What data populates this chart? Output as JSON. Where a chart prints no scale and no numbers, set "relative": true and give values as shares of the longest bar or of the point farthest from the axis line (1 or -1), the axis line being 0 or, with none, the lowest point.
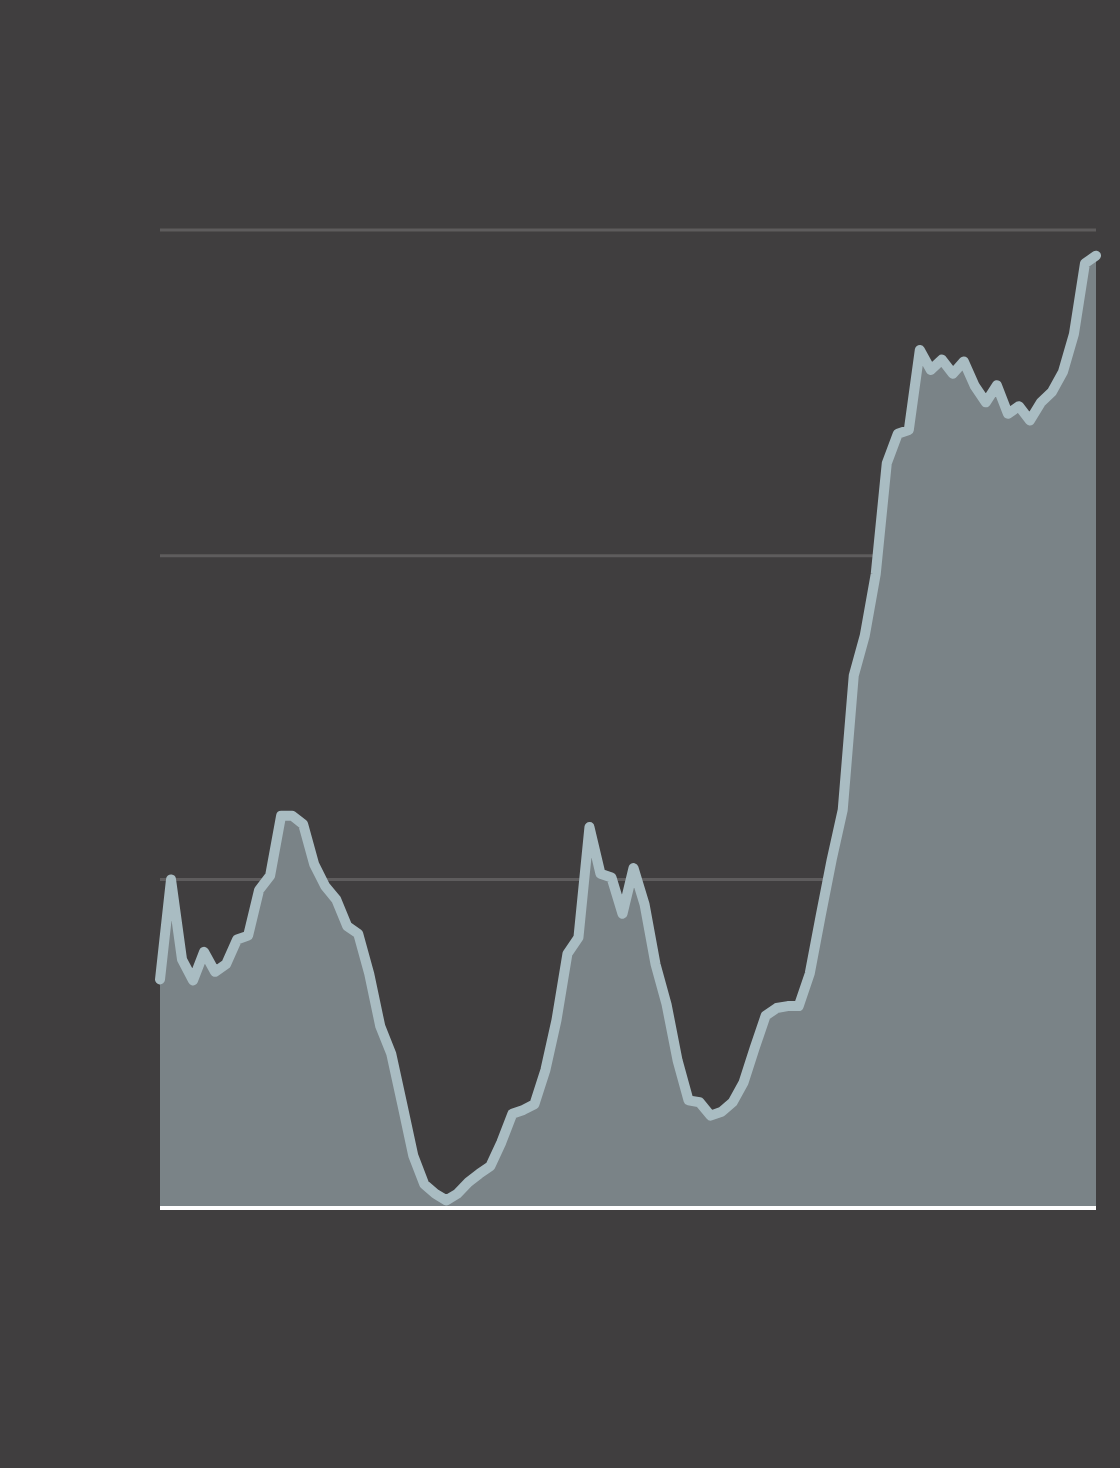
{
  "chart_data": {
    "type": "area",
    "relative": true,
    "ref_lines": [
      {
        "axis": "y",
        "value": 0.345,
        "color": "#5e5c5d"
      },
      {
        "axis": "y",
        "value": 0.685,
        "color": "#5e5c5d"
      },
      {
        "axis": "y",
        "value": 1.027,
        "color": "#5e5c5d"
      }
    ],
    "categories": [
      null,
      null,
      null,
      null,
      null,
      null,
      null,
      null,
      null,
      null,
      null,
      null,
      null,
      null,
      null,
      null,
      null,
      null,
      null,
      null,
      null,
      null,
      null,
      null,
      null,
      null,
      null,
      null,
      null,
      null,
      null,
      null,
      null,
      null,
      null,
      null,
      null,
      null,
      null,
      null,
      null,
      null,
      null,
      null,
      null,
      null,
      null,
      null,
      null,
      null,
      null,
      null,
      null,
      null,
      null,
      null,
      null,
      null,
      null,
      null,
      null,
      null,
      null,
      null,
      null,
      null,
      null,
      null,
      null,
      null,
      null,
      null,
      null,
      null,
      null,
      null,
      null,
      null,
      null,
      null,
      null,
      null,
      null,
      null,
      null,
      null
    ],
    "series": [
      {
        "color": "#a9bcc2",
        "values": [
          0.24,
          0.345,
          0.261,
          0.239,
          0.269,
          0.248,
          0.256,
          0.282,
          0.286,
          0.334,
          0.349,
          0.412,
          0.412,
          0.403,
          0.361,
          0.338,
          0.324,
          0.296,
          0.288,
          0.246,
          0.191,
          0.162,
          0.109,
          0.055,
          0.025,
          0.015,
          0.008,
          0.015,
          0.027,
          0.036,
          0.044,
          0.069,
          0.099,
          0.103,
          0.109,
          0.145,
          0.197,
          0.267,
          0.284,
          0.4,
          0.351,
          0.347,
          0.309,
          0.357,
          0.319,
          0.256,
          0.214,
          0.155,
          0.113,
          0.111,
          0.097,
          0.101,
          0.111,
          0.132,
          0.168,
          0.202,
          0.21,
          0.212,
          0.212,
          0.246,
          0.307,
          0.366,
          0.418,
          0.559,
          0.601,
          0.666,
          0.782,
          0.813,
          0.817,
          0.901,
          0.88,
          0.891,
          0.876,
          0.889,
          0.863,
          0.846,
          0.864,
          0.834,
          0.842,
          0.827,
          0.846,
          0.857,
          0.878,
          0.918,
          0.992,
          1.0
        ]
      }
    ]
  }
}
